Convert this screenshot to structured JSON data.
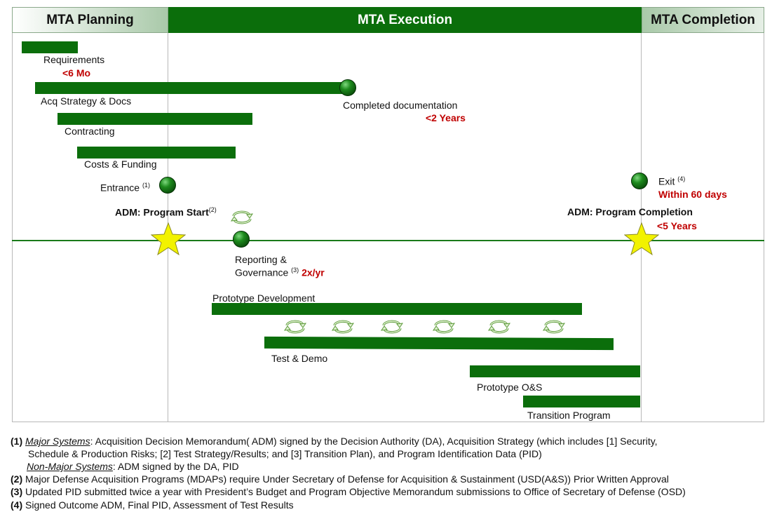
{
  "phases": {
    "planning": "MTA Planning",
    "execution": "MTA Execution",
    "completion": "MTA Completion"
  },
  "planning_tasks": {
    "requirements": "Requirements",
    "requirements_dur": "<6 Mo",
    "acq_strategy": "Acq Strategy & Docs",
    "contracting": "Contracting",
    "costs_funding": "Costs & Funding"
  },
  "milestones": {
    "completed_docs": "Completed documentation",
    "completed_docs_dur": "<2 Years",
    "entrance": "Entrance",
    "entrance_note": "(1)",
    "exit": "Exit",
    "exit_note": "(4)",
    "exit_dur": "Within 60 days",
    "adm_start": "ADM: Program Start",
    "adm_start_note": "(2)",
    "adm_completion": "ADM: Program Completion",
    "adm_completion_dur": "<5 Years",
    "reporting_line1": "Reporting &",
    "reporting_line2": "Governance",
    "reporting_note": "(3)",
    "reporting_freq": "2x/yr"
  },
  "execution_tasks": {
    "prototype_dev": "Prototype Development",
    "test_demo": "Test & Demo",
    "prototype_os": "Prototype O&S",
    "transition": "Transition Program"
  },
  "icons": {
    "milestone": "green-sphere-icon",
    "adm": "yellow-star-icon",
    "cycle": "cycle-arrows-icon"
  },
  "colors": {
    "bar_green": "#0b6e0b",
    "star_yellow": "#f2f200",
    "duration_red": "#c00000"
  },
  "footnotes": {
    "n1": "(1)",
    "n1_major_label": "Major Systems",
    "n1_major_text": ": Acquisition Decision Memorandum( ADM) signed by the Decision Authority (DA), Acquisition Strategy (which includes [1] Security,",
    "n1_major_cont": "Schedule & Production Risks; [2] Test Strategy/Results; and [3] Transition Plan), and Program Identification Data (PID)",
    "n1_nonmajor_label": "Non-Major Systems",
    "n1_nonmajor_text": ": ADM signed by the DA, PID",
    "n2": "(2)",
    "n2_text": "Major Defense Acquisition Programs (MDAPs) require Under Secretary of Defense for Acquisition & Sustainment (USD(A&S)) Prior Written Approval",
    "n3": "(3)",
    "n3_text": "Updated PID submitted twice a year with President’s Budget and Program Objective Memorandum submissions to Office of Secretary of Defense (OSD)",
    "n4": "(4)",
    "n4_text": "Signed Outcome ADM, Final PID, Assessment of Test Results"
  }
}
